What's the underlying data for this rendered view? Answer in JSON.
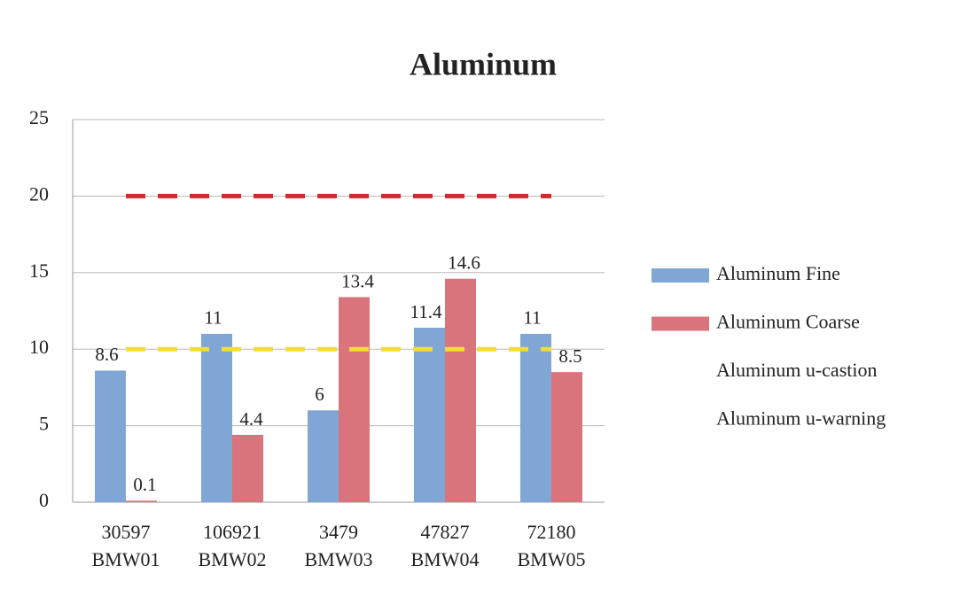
{
  "chart_data": {
    "type": "bar",
    "title": "Aluminum",
    "categories": [
      [
        "30597",
        "BMW01"
      ],
      [
        "106921",
        "BMW02"
      ],
      [
        "3479",
        "BMW03"
      ],
      [
        "47827",
        "BMW04"
      ],
      [
        "72180",
        "BMW05"
      ]
    ],
    "series": [
      {
        "name": "Aluminum Fine",
        "kind": "bar",
        "color": "#7fa6d5",
        "label_color": "#5b8ac4",
        "values": [
          8.6,
          11,
          6,
          11.4,
          11
        ]
      },
      {
        "name": "Aluminum Coarse",
        "kind": "bar",
        "color": "#d9737c",
        "label_color": "#c9505c",
        "values": [
          0.1,
          4.4,
          13.4,
          14.6,
          8.5
        ]
      },
      {
        "name": "Aluminum u-castion",
        "kind": "line",
        "dashed": true,
        "color": "#f2dc3c",
        "values": [
          10,
          10,
          10,
          10,
          10
        ]
      },
      {
        "name": "Aluminum u-warning",
        "kind": "line",
        "dashed": true,
        "color": "#d8262e",
        "values": [
          20,
          20,
          20,
          20,
          20
        ]
      }
    ],
    "ylim": [
      0,
      25
    ],
    "yticks": [
      0,
      5,
      10,
      15,
      20,
      25
    ],
    "grid": true,
    "legend": "right"
  }
}
